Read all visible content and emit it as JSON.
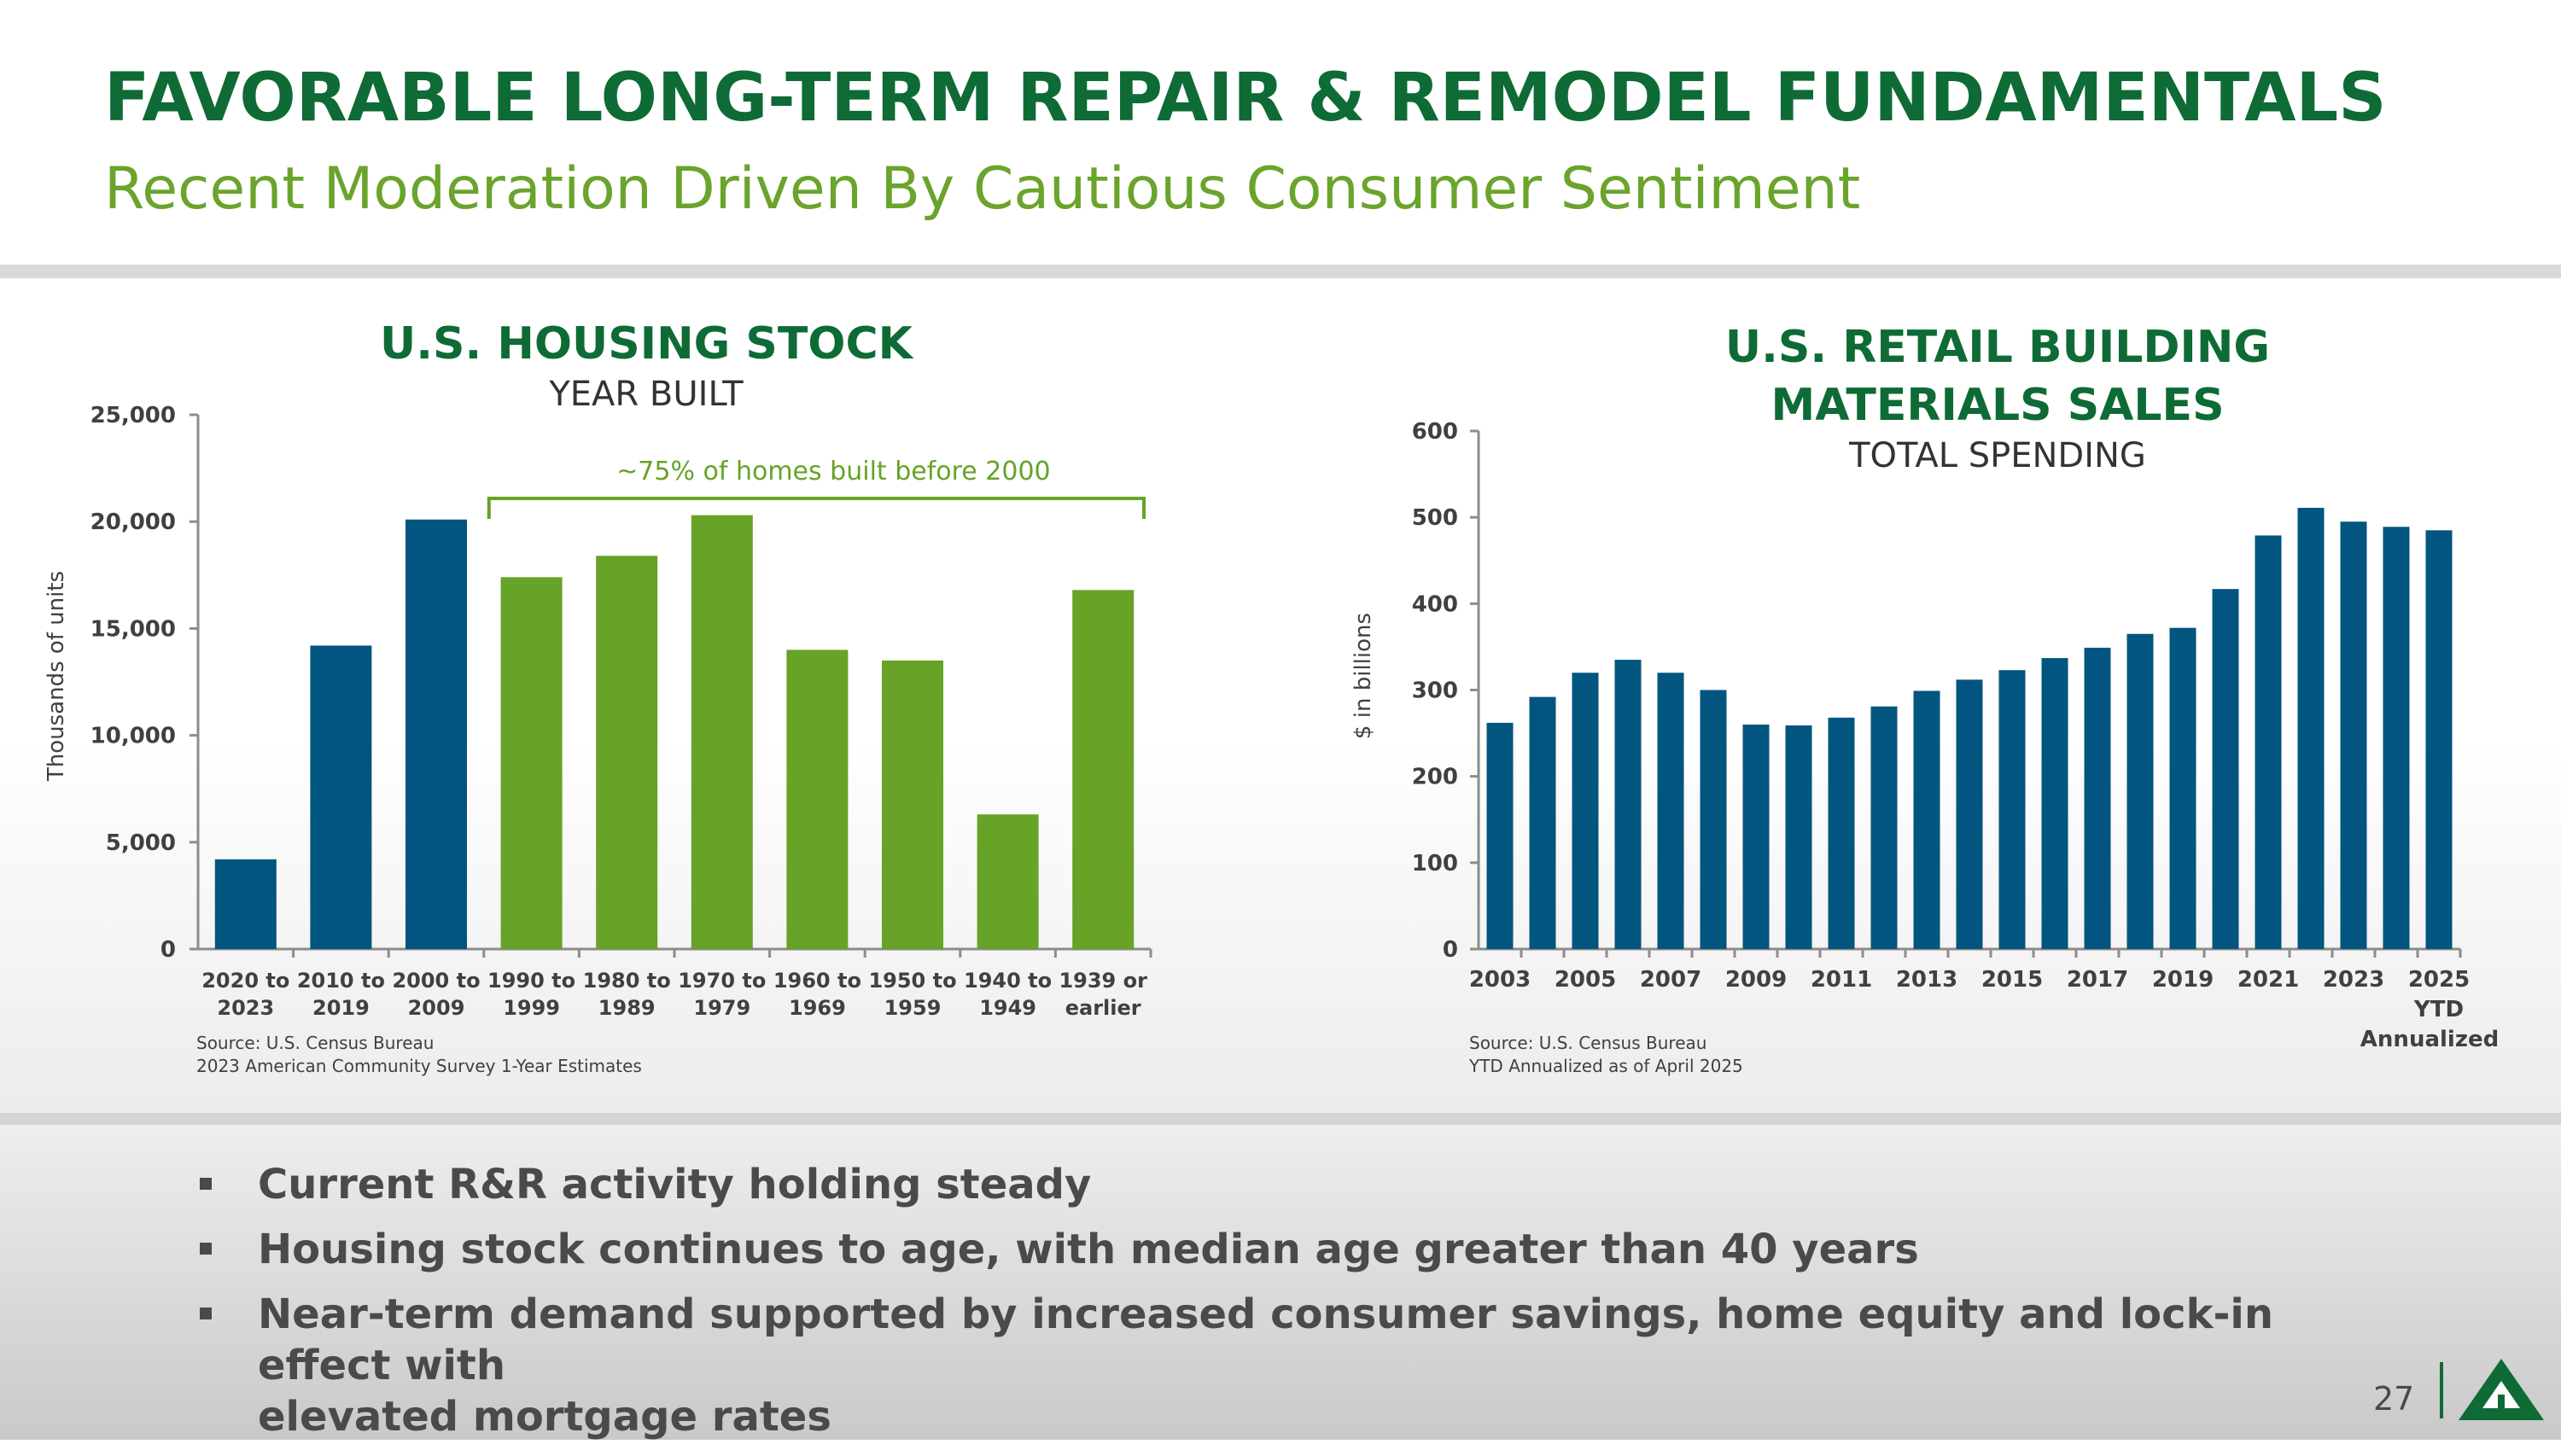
{
  "header": {
    "title": "FAVORABLE LONG-TERM REPAIR & REMODEL FUNDAMENTALS",
    "subtitle": "Recent Moderation Driven By Cautious Consumer Sentiment"
  },
  "colors": {
    "title_green": "#0e6b35",
    "subtitle_green": "#6aa42c",
    "bar_blue": "#02557f",
    "bar_green": "#66a326",
    "text_gray": "#4a4a4a"
  },
  "chart_data": [
    {
      "type": "bar",
      "title": "U.S. HOUSING STOCK",
      "subtitle": "YEAR BUILT",
      "ylabel": "Thousands of units",
      "xlabel": "",
      "ylim": [
        0,
        25000
      ],
      "yticks": [
        "0",
        "5,000",
        "10,000",
        "15,000",
        "20,000",
        "25,000"
      ],
      "ytick_values": [
        0,
        5000,
        10000,
        15000,
        20000,
        25000
      ],
      "categories": [
        [
          "2020 to",
          "2023"
        ],
        [
          "2010 to",
          "2019"
        ],
        [
          "2000 to",
          "2009"
        ],
        [
          "1990 to",
          "1999"
        ],
        [
          "1980 to",
          "1989"
        ],
        [
          "1970 to",
          "1979"
        ],
        [
          "1960 to",
          "1969"
        ],
        [
          "1950 to",
          "1959"
        ],
        [
          "1940 to",
          "1949"
        ],
        [
          "1939 or",
          "earlier"
        ]
      ],
      "values": [
        4200,
        14200,
        20100,
        17400,
        18400,
        20300,
        14000,
        13500,
        6300,
        16800
      ],
      "bar_colors": [
        "blue",
        "blue",
        "blue",
        "green",
        "green",
        "green",
        "green",
        "green",
        "green",
        "green"
      ],
      "annotation": "~75% of homes built before 2000",
      "grid": false,
      "source": [
        "Source: U.S. Census Bureau",
        "2023 American Community Survey 1-Year Estimates"
      ]
    },
    {
      "type": "bar",
      "title_lines": [
        "U.S. RETAIL BUILDING",
        "MATERIALS SALES"
      ],
      "subtitle": "TOTAL SPENDING",
      "ylabel": "$ in billions",
      "xlabel": "",
      "ylim": [
        0,
        600
      ],
      "yticks": [
        "0",
        "100",
        "200",
        "300",
        "400",
        "500",
        "600"
      ],
      "ytick_values": [
        0,
        100,
        200,
        300,
        400,
        500,
        600
      ],
      "years": [
        2003,
        2004,
        2005,
        2006,
        2007,
        2008,
        2009,
        2010,
        2011,
        2012,
        2013,
        2014,
        2015,
        2016,
        2017,
        2018,
        2019,
        2020,
        2021,
        2022,
        2023,
        2024,
        2025
      ],
      "values": [
        262,
        292,
        320,
        335,
        320,
        300,
        260,
        259,
        268,
        281,
        299,
        312,
        323,
        337,
        349,
        365,
        372,
        417,
        479,
        511,
        495,
        489,
        485
      ],
      "xtick_labels": [
        [
          "2003"
        ],
        [
          "2005"
        ],
        [
          "2007"
        ],
        [
          "2009"
        ],
        [
          "2011"
        ],
        [
          "2013"
        ],
        [
          "2015"
        ],
        [
          "2017"
        ],
        [
          "2019"
        ],
        [
          "2021"
        ],
        [
          "2023"
        ],
        [
          "2025",
          "YTD",
          "Annualized"
        ]
      ],
      "grid": false,
      "source": [
        "Source: U.S. Census Bureau",
        "YTD Annualized as of April 2025"
      ]
    }
  ],
  "bullets": [
    [
      "Current R&R activity holding steady"
    ],
    [
      "Housing stock continues to age, with median age greater than 40 years"
    ],
    [
      "Near-term demand supported by increased consumer savings, home equity and lock-in effect with",
      "elevated mortgage rates"
    ]
  ],
  "footer": {
    "page_number": "27",
    "logo_icon": "triangle-arrow-logo-icon"
  }
}
